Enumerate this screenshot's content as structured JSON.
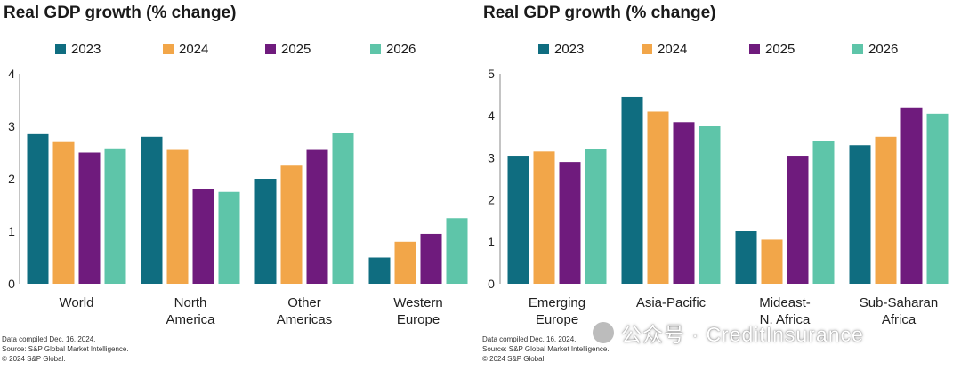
{
  "colors": {
    "2023": "#0f6d80",
    "2024": "#f2a649",
    "2025": "#6f1b7d",
    "2026": "#5ec5a9"
  },
  "watermark": {
    "text": "公众号 · CreditInsurance"
  },
  "chart_data": [
    {
      "type": "bar",
      "title": "Real GDP growth (% change)",
      "xlabel": "",
      "ylabel": "",
      "ylim": [
        0,
        4
      ],
      "yticks": [
        "0",
        "1",
        "2",
        "3",
        "4"
      ],
      "legend_position": "top",
      "categories": [
        "World",
        "North\nAmerica",
        "Other\nAmericas",
        "Western\nEurope"
      ],
      "series": [
        {
          "name": "2023",
          "values": [
            2.85,
            2.8,
            2.0,
            0.5
          ]
        },
        {
          "name": "2024",
          "values": [
            2.7,
            2.55,
            2.25,
            0.8
          ]
        },
        {
          "name": "2025",
          "values": [
            2.5,
            1.8,
            2.55,
            0.95
          ]
        },
        {
          "name": "2026",
          "values": [
            2.58,
            1.75,
            2.88,
            1.25
          ]
        }
      ],
      "notes": [
        "Data compiled Dec. 16, 2024.",
        "Source: S&P Global Market Intelligence.",
        "© 2024 S&P Global."
      ]
    },
    {
      "type": "bar",
      "title": "Real GDP growth (% change)",
      "xlabel": "",
      "ylabel": "",
      "ylim": [
        0,
        5
      ],
      "yticks": [
        "0",
        "1",
        "2",
        "3",
        "4",
        "5"
      ],
      "legend_position": "top",
      "categories": [
        "Emerging\nEurope",
        "Asia-Pacific",
        "Mideast-\nN. Africa",
        "Sub-Saharan\nAfrica"
      ],
      "series": [
        {
          "name": "2023",
          "values": [
            3.05,
            4.45,
            1.25,
            3.3
          ]
        },
        {
          "name": "2024",
          "values": [
            3.15,
            4.1,
            1.05,
            3.5
          ]
        },
        {
          "name": "2025",
          "values": [
            2.9,
            3.85,
            3.05,
            4.2
          ]
        },
        {
          "name": "2026",
          "values": [
            3.2,
            3.75,
            3.4,
            4.05
          ]
        }
      ],
      "notes": [
        "Data compiled Dec. 16, 2024.",
        "Source: S&P Global Market Intelligence.",
        "© 2024 S&P Global."
      ]
    }
  ]
}
